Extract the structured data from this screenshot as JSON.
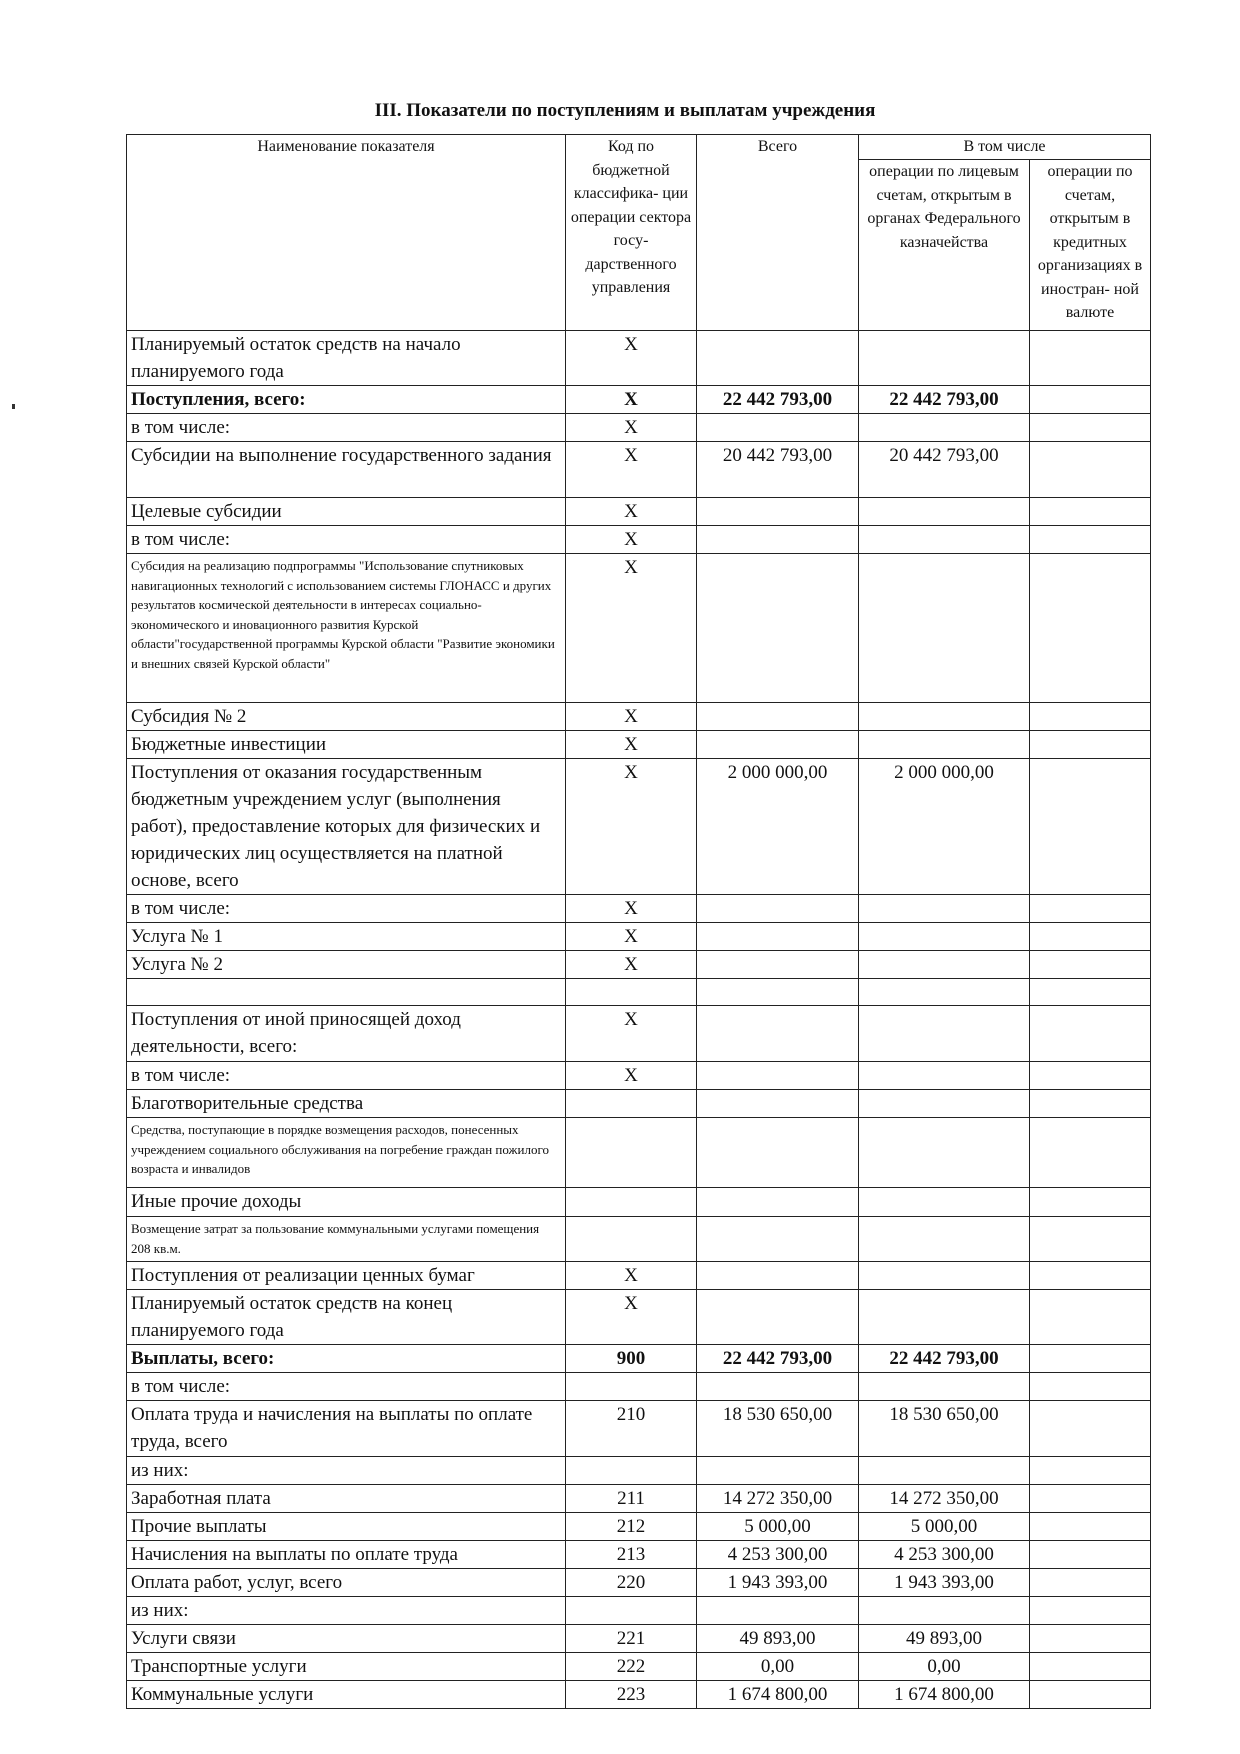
{
  "title": "III. Показатели по поступлениям и выплатам учреждения",
  "header": {
    "name": "Наименование показателя",
    "code": "Код по бюджетной классифика- ции операции сектора госу- дарственного управления",
    "total": "Всего",
    "including": "В том числе",
    "fed": "операции по лицевым счетам, открытым в органах Федерального казначейства",
    "foreign": "операции по счетам, открытым в кредитных организациях в иностран- ной валюте"
  },
  "rows": [
    [
      "Планируемый остаток средств на начало планируемого года",
      "X",
      "",
      "",
      ""
    ],
    [
      "Поступления, всего:",
      "X",
      "22 442 793,00",
      "22 442 793,00",
      ""
    ],
    [
      "в том числе:",
      "X",
      "",
      "",
      ""
    ],
    [
      "Субсидии на выполнение государственного задания",
      "X",
      "20 442 793,00",
      "20 442 793,00",
      ""
    ],
    [
      "Целевые субсидии",
      "X",
      "",
      "",
      ""
    ],
    [
      "в том числе:",
      "X",
      "",
      "",
      ""
    ],
    [
      "Субсидия на реализацию подпрограммы \"Использование спутниковых навигационных технологий с использованием системы ГЛОНАСС и других результатов космической деятельности в интересах социально-экономического и иновационного развития Курской области\"государственной программы Курской области \"Развитие экономики и внешних связей Курской области\"",
      "X",
      "",
      "",
      ""
    ],
    [
      "Субсидия № 2",
      "X",
      "",
      "",
      ""
    ],
    [
      "Бюджетные инвестиции",
      "X",
      "",
      "",
      ""
    ],
    [
      "Поступления от оказания государственным бюджетным учреждением услуг (выполнения работ), предоставление которых для физических и юридических лиц осуществляется на платной основе, всего",
      "X",
      "2 000 000,00",
      "2 000 000,00",
      ""
    ],
    [
      "в том числе:",
      "X",
      "",
      "",
      ""
    ],
    [
      "Услуга № 1",
      "X",
      "",
      "",
      ""
    ],
    [
      "Услуга № 2",
      "X",
      "",
      "",
      ""
    ],
    [
      "",
      "",
      "",
      "",
      ""
    ],
    [
      "Поступления от иной приносящей доход деятельности, всего:",
      "X",
      "",
      "",
      ""
    ],
    [
      "в том числе:",
      "X",
      "",
      "",
      ""
    ],
    [
      "Благотворительные средства",
      "",
      "",
      "",
      ""
    ],
    [
      "Средства, поступающие в порядке возмещения расходов, понесенных учреждением социального обслуживания на погребение граждан пожилого возраста и инвалидов",
      "",
      "",
      "",
      ""
    ],
    [
      "Иные прочие доходы",
      "",
      "",
      "",
      ""
    ],
    [
      "Возмещение затрат за пользование коммунальными услугами помещения 208 кв.м.",
      "",
      "",
      "",
      ""
    ],
    [
      "Поступления от реализации ценных бумаг",
      "X",
      "",
      "",
      ""
    ],
    [
      "Планируемый остаток средств на конец планируемого года",
      "X",
      "",
      "",
      ""
    ],
    [
      "Выплаты, всего:",
      "900",
      "22 442 793,00",
      "22 442 793,00",
      ""
    ],
    [
      "в том числе:",
      "",
      "",
      "",
      ""
    ],
    [
      "Оплата труда и начисления на выплаты по оплате труда, всего",
      "210",
      "18 530 650,00",
      "18 530 650,00",
      ""
    ],
    [
      "из них:",
      "",
      "",
      "",
      ""
    ],
    [
      "Заработная плата",
      "211",
      "14 272 350,00",
      "14 272 350,00",
      ""
    ],
    [
      "Прочие выплаты",
      "212",
      "5 000,00",
      "5 000,00",
      ""
    ],
    [
      "Начисления на выплаты по оплате труда",
      "213",
      "4 253 300,00",
      "4 253 300,00",
      ""
    ],
    [
      "Оплата работ, услуг, всего",
      "220",
      "1 943 393,00",
      "1 943 393,00",
      ""
    ],
    [
      "из них:",
      "",
      "",
      "",
      ""
    ],
    [
      "Услуги связи",
      "221",
      "49 893,00",
      "49 893,00",
      ""
    ],
    [
      "Транспортные услуги",
      "222",
      "0,00",
      "0,00",
      ""
    ],
    [
      "Коммунальные услуги",
      "223",
      "1 674 800,00",
      "1 674 800,00",
      ""
    ]
  ]
}
